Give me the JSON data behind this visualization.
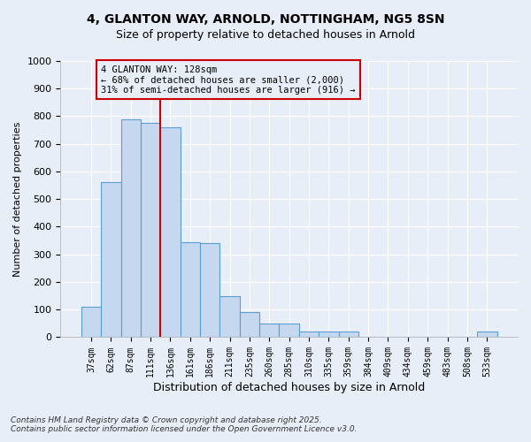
{
  "title_line1": "4, GLANTON WAY, ARNOLD, NOTTINGHAM, NG5 8SN",
  "title_line2": "Size of property relative to detached houses in Arnold",
  "xlabel": "Distribution of detached houses by size in Arnold",
  "ylabel": "Number of detached properties",
  "categories": [
    "37sqm",
    "62sqm",
    "87sqm",
    "111sqm",
    "136sqm",
    "161sqm",
    "186sqm",
    "211sqm",
    "235sqm",
    "260sqm",
    "285sqm",
    "310sqm",
    "335sqm",
    "359sqm",
    "384sqm",
    "409sqm",
    "434sqm",
    "459sqm",
    "483sqm",
    "508sqm",
    "533sqm"
  ],
  "values": [
    110,
    560,
    790,
    775,
    760,
    345,
    340,
    150,
    90,
    50,
    50,
    20,
    20,
    20,
    0,
    0,
    0,
    0,
    0,
    0,
    20
  ],
  "bar_color": "#c5d8ef",
  "bar_edge_color": "#5a9fd4",
  "bg_color": "#e8eef7",
  "grid_color": "#d0d8e8",
  "vline_color": "#cc0000",
  "annotation_text": "4 GLANTON WAY: 128sqm\n← 68% of detached houses are smaller (2,000)\n31% of semi-detached houses are larger (916) →",
  "annotation_box_color": "#cc0000",
  "footnote1": "Contains HM Land Registry data © Crown copyright and database right 2025.",
  "footnote2": "Contains public sector information licensed under the Open Government Licence v3.0.",
  "ylim": [
    0,
    1000
  ],
  "yticks": [
    0,
    100,
    200,
    300,
    400,
    500,
    600,
    700,
    800,
    900,
    1000
  ]
}
